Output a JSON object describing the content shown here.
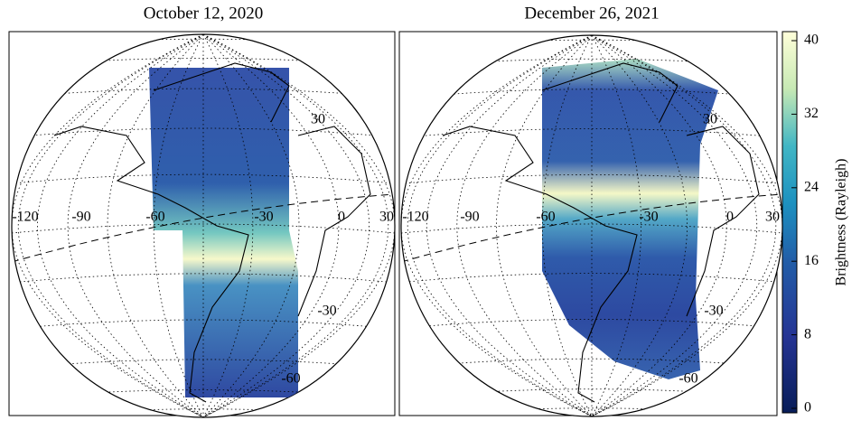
{
  "panels": [
    {
      "title": "October 12, 2020",
      "lon_labels": [
        -120,
        -90,
        -60,
        -30,
        0,
        30
      ],
      "lat_labels": [
        30,
        -30,
        -60
      ]
    },
    {
      "title": "December 26, 2021",
      "lon_labels": [
        -120,
        -90,
        -60,
        -30,
        0,
        30
      ],
      "lat_labels": [
        30,
        -30,
        -60
      ]
    }
  ],
  "colorbar": {
    "label": "Brightness (Rayleigh)",
    "ticks": [
      0,
      8,
      16,
      24,
      32,
      40
    ]
  }
}
